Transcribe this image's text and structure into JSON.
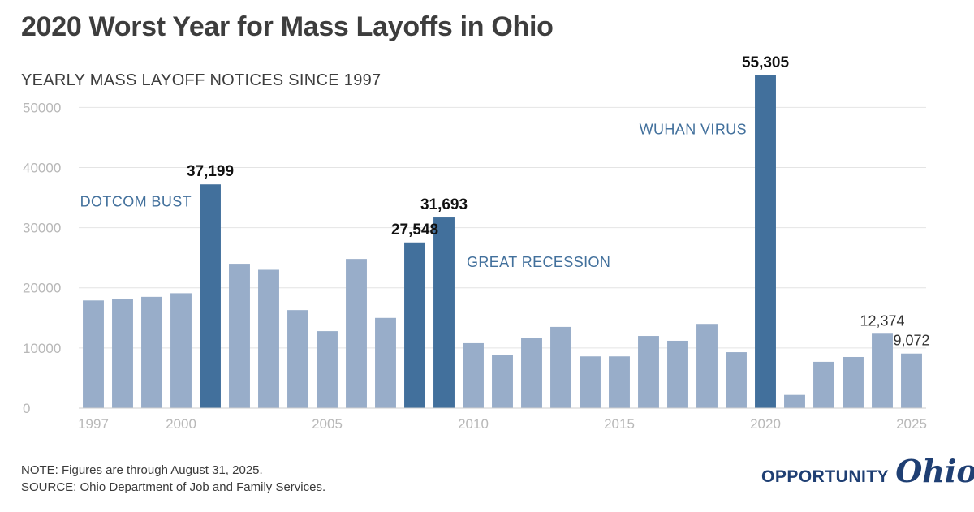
{
  "title": "2020 Worst Year for Mass Layoffs in Ohio",
  "subtitle": "YEARLY MASS LAYOFF NOTICES SINCE 1997",
  "note": "NOTE: Figures are through August 31, 2025.",
  "source": "SOURCE: Ohio Department of Job and Family Services.",
  "logo": {
    "word": "OPPORTUNITY",
    "script": "Ohio"
  },
  "colors": {
    "normal": "#98adc9",
    "highlight": "#42709c",
    "grid": "#e4e4e4",
    "tick": "#b8b8b8",
    "annotation": "#42709c",
    "brand": "#1f3f73"
  },
  "chart_data": {
    "type": "bar",
    "x": [
      1997,
      1998,
      1999,
      2000,
      2001,
      2002,
      2003,
      2004,
      2005,
      2006,
      2007,
      2008,
      2009,
      2010,
      2011,
      2012,
      2013,
      2014,
      2015,
      2016,
      2017,
      2018,
      2019,
      2020,
      2021,
      2022,
      2023,
      2024,
      2025
    ],
    "values": [
      17900,
      18200,
      18500,
      19100,
      37199,
      24000,
      23000,
      16300,
      12800,
      24800,
      15000,
      27548,
      31693,
      10800,
      8800,
      11700,
      13500,
      8600,
      8600,
      12000,
      11200,
      14000,
      9300,
      55305,
      2200,
      7700,
      8500,
      12374,
      9072
    ],
    "highlight": [
      2001,
      2008,
      2009,
      2020
    ],
    "ylim": [
      0,
      55305
    ],
    "yticks": [
      0,
      10000,
      20000,
      30000,
      40000,
      50000
    ],
    "xticks": [
      1997,
      2000,
      2005,
      2010,
      2015,
      2020,
      2025
    ],
    "grid": true,
    "data_labels": [
      {
        "year": 2001,
        "text": "37,199",
        "bold": true
      },
      {
        "year": 2008,
        "text": "27,548",
        "bold": true
      },
      {
        "year": 2009,
        "text": "31,693",
        "bold": true
      },
      {
        "year": 2020,
        "text": "55,305",
        "bold": true
      },
      {
        "year": 2024,
        "text": "12,374",
        "bold": false
      },
      {
        "year": 2025,
        "text": "9,072",
        "bold": false
      }
    ],
    "annotations": [
      {
        "text": "DOTCOM BUST",
        "year": 2001,
        "side": "left",
        "level": 33500
      },
      {
        "text": "GREAT RECESSION",
        "year": 2009,
        "side": "right",
        "level": 23500
      },
      {
        "text": "WUHAN VIRUS",
        "year": 2020,
        "side": "left",
        "level": 45500
      }
    ]
  }
}
